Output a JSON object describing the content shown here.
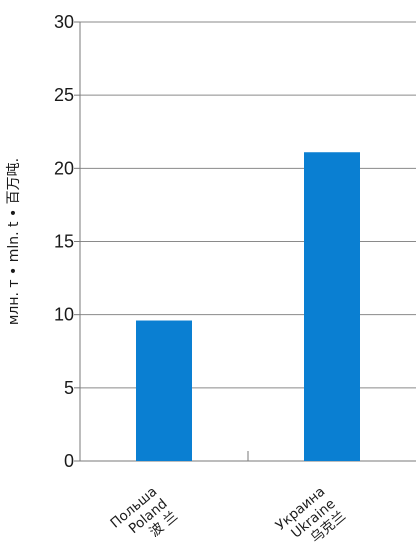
{
  "chart_data": {
    "type": "bar",
    "categories": [
      [
        "Польша",
        "Poland",
        "波 兰"
      ],
      [
        "Украина",
        "Ukraine",
        "乌克兰"
      ]
    ],
    "values": [
      9.6,
      21.1
    ],
    "ylabel": "млн. т • mln. t • 百万吨.",
    "ylim": [
      0,
      30
    ],
    "yticks": [
      0,
      5,
      10,
      15,
      20,
      25,
      30
    ],
    "grid": true,
    "colors": {
      "bar": "#0a7fd2",
      "grid": "#8a8a8a",
      "axis": "#7a7a7a"
    }
  }
}
